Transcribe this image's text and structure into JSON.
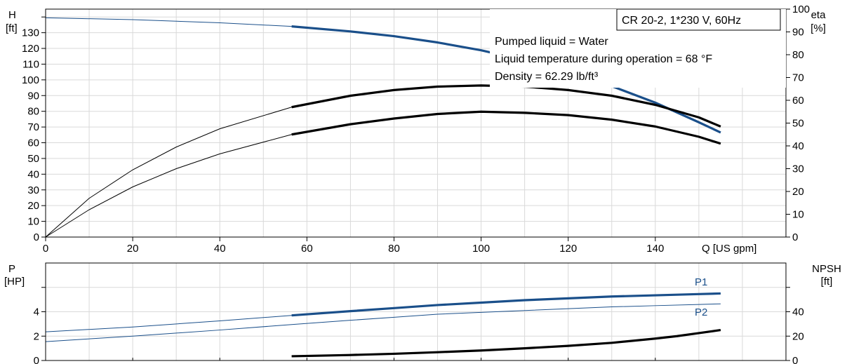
{
  "chart_data": [
    {
      "type": "line",
      "title": "CR 20-2, 1*230 V, 60Hz",
      "annotations": [
        "Pumped liquid = Water",
        "Liquid temperature during operation = 68 °F",
        "Density = 62.29 lb/ft³"
      ],
      "xlabel": "Q [US gpm]",
      "xlim": [
        0,
        170
      ],
      "x_ticks": [
        0,
        20,
        40,
        60,
        80,
        100,
        120,
        140
      ],
      "y_left": {
        "label_line1": "H",
        "label_line2": "[ft]",
        "ylim": [
          0,
          145
        ],
        "ticks": [
          0,
          10,
          20,
          30,
          40,
          50,
          60,
          70,
          80,
          90,
          100,
          110,
          120,
          130
        ]
      },
      "y_right": {
        "label_line1": "eta",
        "label_line2": "[%]",
        "ylim": [
          0,
          100
        ],
        "ticks": [
          0,
          10,
          20,
          30,
          40,
          50,
          60,
          70,
          80,
          90,
          100
        ]
      },
      "grid": true,
      "series": [
        {
          "axis": "left",
          "color": "#1a4f8a",
          "x": [
            0,
            20,
            40,
            56.5,
            70,
            80,
            90,
            100,
            110,
            120,
            130,
            140,
            150,
            155
          ],
          "y": [
            139.5,
            138.3,
            136.3,
            134.0,
            130.8,
            127.8,
            123.8,
            118.8,
            112.5,
            105.0,
            96.0,
            85.5,
            73.0,
            66.5
          ],
          "bold_range": [
            56.5,
            155
          ]
        },
        {
          "axis": "right",
          "color": "#000000",
          "x": [
            0,
            10,
            20,
            30,
            40,
            56.5,
            70,
            80,
            90,
            100,
            110,
            120,
            130,
            140,
            150,
            155
          ],
          "y": [
            0,
            17,
            29.5,
            39.5,
            47.5,
            57,
            62,
            64.5,
            66,
            66.5,
            66,
            64.5,
            62,
            58,
            52.5,
            48.5
          ],
          "bold_range": [
            56.5,
            155
          ]
        },
        {
          "axis": "right",
          "color": "#000000",
          "x": [
            0,
            10,
            20,
            30,
            40,
            56.5,
            70,
            80,
            90,
            100,
            110,
            120,
            130,
            140,
            150,
            155
          ],
          "y": [
            0,
            12,
            22,
            30,
            36.5,
            45,
            49.5,
            52,
            54,
            55,
            54.5,
            53.5,
            51.5,
            48.5,
            44,
            41
          ],
          "bold_range": [
            56.5,
            155
          ]
        }
      ]
    },
    {
      "type": "line",
      "xlim": [
        0,
        170
      ],
      "y_left": {
        "label_line1": "P",
        "label_line2": "[HP]",
        "ylim": [
          0,
          8
        ],
        "ticks": [
          0,
          2,
          4,
          6
        ],
        "tick_labels": [
          "0",
          "2",
          "4",
          ""
        ]
      },
      "y_right": {
        "label_line1": "NPSH",
        "label_line2": "[ft]",
        "ylim": [
          0,
          80
        ],
        "ticks": [
          0,
          20,
          40,
          60
        ],
        "tick_labels": [
          "0",
          "20",
          "40",
          ""
        ]
      },
      "grid": true,
      "series": [
        {
          "name": "P1",
          "axis": "left",
          "color": "#1a4f8a",
          "x": [
            0,
            20,
            40,
            56.5,
            70,
            80,
            90,
            100,
            110,
            120,
            130,
            140,
            150,
            155
          ],
          "y": [
            2.35,
            2.75,
            3.25,
            3.7,
            4.05,
            4.3,
            4.55,
            4.75,
            4.95,
            5.1,
            5.25,
            5.35,
            5.45,
            5.5
          ],
          "bold_range": [
            56.5,
            155
          ]
        },
        {
          "name": "P2",
          "axis": "left",
          "color": "#1a4f8a",
          "x": [
            0,
            20,
            40,
            56.5,
            70,
            80,
            90,
            100,
            110,
            120,
            130,
            140,
            150,
            155
          ],
          "y": [
            1.55,
            2.0,
            2.5,
            2.95,
            3.3,
            3.55,
            3.8,
            3.95,
            4.1,
            4.25,
            4.4,
            4.5,
            4.6,
            4.65
          ],
          "bold_range": [
            999,
            999
          ]
        },
        {
          "axis": "right",
          "color": "#000000",
          "x": [
            56.5,
            70,
            80,
            90,
            100,
            110,
            120,
            130,
            140,
            145,
            150,
            155
          ],
          "y": [
            3.5,
            4.5,
            5.5,
            6.8,
            8.2,
            10,
            12,
            14.5,
            18,
            20,
            22.5,
            25
          ],
          "bold_range": [
            56.5,
            155
          ]
        }
      ]
    }
  ]
}
